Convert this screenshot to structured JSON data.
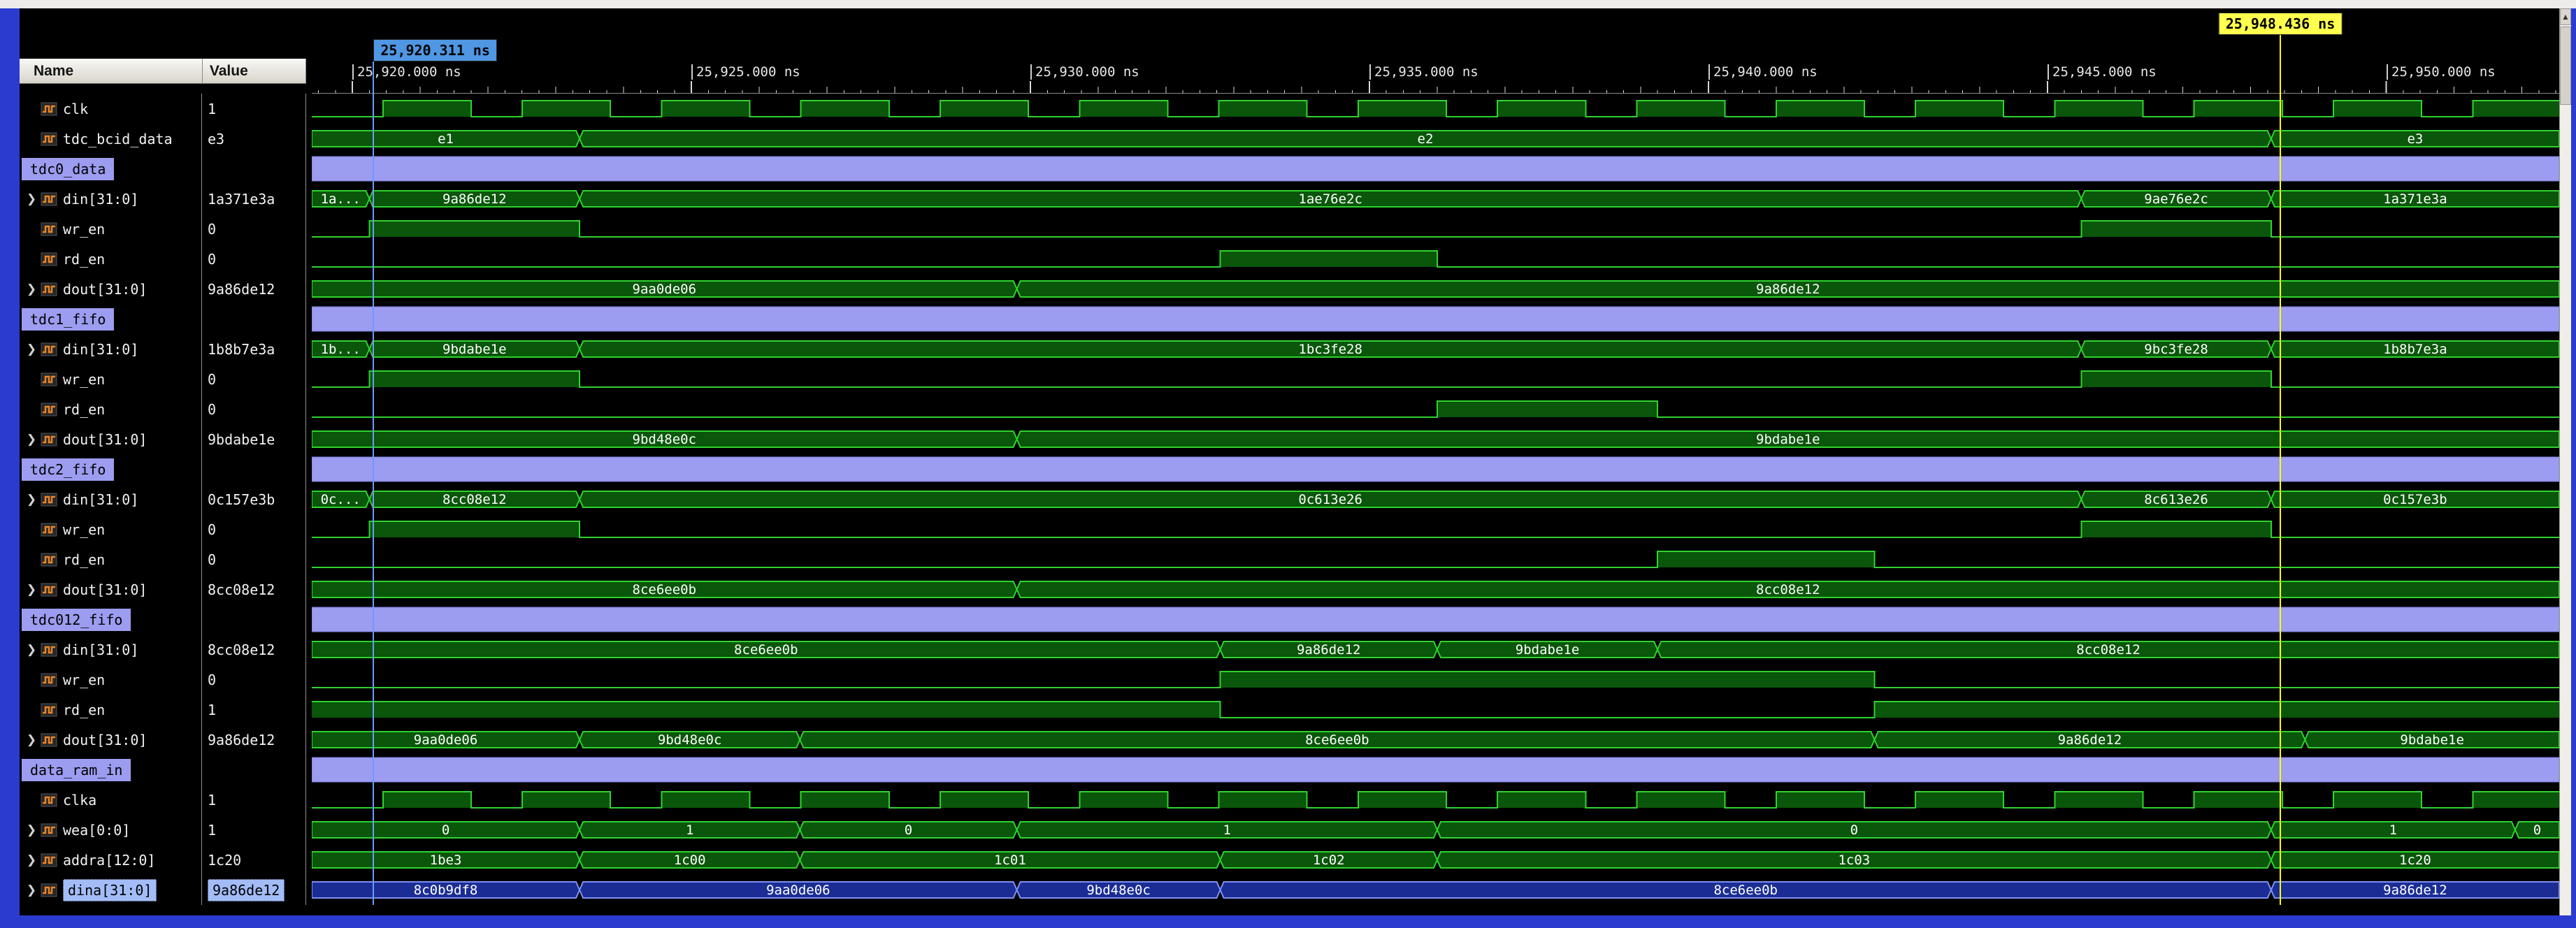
{
  "header": {
    "name_label": "Name",
    "value_label": "Value"
  },
  "scrollbar": {
    "up_arrow": "▲"
  },
  "cursors": {
    "primary": {
      "time_ns": 25920.311,
      "label": "25,920.311 ns"
    },
    "secondary": {
      "time_ns": 25948.436,
      "label": "25,948.436 ns"
    }
  },
  "timeline": {
    "start_ns": 25919.4,
    "end_ns": 25952.55,
    "major_step_ns": 5,
    "medium_step_ns": 1,
    "minor_step_ns": 0.25,
    "ticks": [
      {
        "t": 25920,
        "label": "25,920.000 ns"
      },
      {
        "t": 25925,
        "label": "25,925.000 ns"
      },
      {
        "t": 25930,
        "label": "25,930.000 ns"
      },
      {
        "t": 25935,
        "label": "25,935.000 ns"
      },
      {
        "t": 25940,
        "label": "25,940.000 ns"
      },
      {
        "t": 25945,
        "label": "25,945.000 ns"
      },
      {
        "t": 25950,
        "label": "25,950.000 ns"
      }
    ]
  },
  "colors": {
    "wave_stroke": "#2fd32f",
    "wave_fill": "#0a560a",
    "divider": "#9c9cf0",
    "divider_stroke": "#7d7dd8",
    "selected_wave_fill": "#1b2d95",
    "selected_wave_stroke": "#7e90f2",
    "selected_text": "#eef2ff",
    "cursor1_line": "#6b9bff",
    "cursor1_chip_bg": "#4f97e3",
    "cursor2_line": "#ffff00",
    "cursor2_chip_bg": "#ffff4d"
  },
  "signals": [
    {
      "name": "clk",
      "value": "1",
      "kind": "clock",
      "expandable": false,
      "clock": {
        "first_rise": 25920.45,
        "period": 2.055,
        "high": 1.3
      }
    },
    {
      "name": "tdc_bcid_data",
      "value": "e3",
      "kind": "bus",
      "expandable": false,
      "segs": [
        [
          25919.4,
          25923.35,
          "e1"
        ],
        [
          25923.35,
          25948.3,
          "e2"
        ],
        [
          25948.3,
          25952.55,
          "e3"
        ]
      ]
    },
    {
      "name": "tdc0_data",
      "kind": "divider"
    },
    {
      "name": "din[31:0]",
      "value": "1a371e3a",
      "kind": "bus",
      "expandable": true,
      "segs": [
        [
          25919.4,
          25920.25,
          "1a..."
        ],
        [
          25920.25,
          25923.35,
          "9a86de12"
        ],
        [
          25923.35,
          25945.5,
          "1ae76e2c"
        ],
        [
          25945.5,
          25948.3,
          "9ae76e2c"
        ],
        [
          25948.3,
          25952.55,
          "1a371e3a"
        ]
      ]
    },
    {
      "name": "wr_en",
      "value": "0",
      "kind": "bit",
      "init": 0,
      "edges": [
        25920.25,
        25923.35,
        25945.5,
        25948.3
      ]
    },
    {
      "name": "rd_en",
      "value": "0",
      "kind": "bit",
      "init": 0,
      "edges": [
        25932.8,
        25936.0
      ]
    },
    {
      "name": "dout[31:0]",
      "value": "9a86de12",
      "kind": "bus",
      "expandable": true,
      "segs": [
        [
          25919.4,
          25929.8,
          "9aa0de06"
        ],
        [
          25929.8,
          25952.55,
          "9a86de12"
        ]
      ]
    },
    {
      "name": "tdc1_fifo",
      "kind": "divider"
    },
    {
      "name": "din[31:0]",
      "value": "1b8b7e3a",
      "kind": "bus",
      "expandable": true,
      "segs": [
        [
          25919.4,
          25920.25,
          "1b..."
        ],
        [
          25920.25,
          25923.35,
          "9bdabe1e"
        ],
        [
          25923.35,
          25945.5,
          "1bc3fe28"
        ],
        [
          25945.5,
          25948.3,
          "9bc3fe28"
        ],
        [
          25948.3,
          25952.55,
          "1b8b7e3a"
        ]
      ]
    },
    {
      "name": "wr_en",
      "value": "0",
      "kind": "bit",
      "init": 0,
      "edges": [
        25920.25,
        25923.35,
        25945.5,
        25948.3
      ]
    },
    {
      "name": "rd_en",
      "value": "0",
      "kind": "bit",
      "init": 0,
      "edges": [
        25936.0,
        25939.25
      ]
    },
    {
      "name": "dout[31:0]",
      "value": "9bdabe1e",
      "kind": "bus",
      "expandable": true,
      "segs": [
        [
          25919.4,
          25929.8,
          "9bd48e0c"
        ],
        [
          25929.8,
          25952.55,
          "9bdabe1e"
        ]
      ]
    },
    {
      "name": "tdc2_fifo",
      "kind": "divider"
    },
    {
      "name": "din[31:0]",
      "value": "0c157e3b",
      "kind": "bus",
      "expandable": true,
      "segs": [
        [
          25919.4,
          25920.25,
          "0c..."
        ],
        [
          25920.25,
          25923.35,
          "8cc08e12"
        ],
        [
          25923.35,
          25945.5,
          "0c613e26"
        ],
        [
          25945.5,
          25948.3,
          "8c613e26"
        ],
        [
          25948.3,
          25952.55,
          "0c157e3b"
        ]
      ]
    },
    {
      "name": "wr_en",
      "value": "0",
      "kind": "bit",
      "init": 0,
      "edges": [
        25920.25,
        25923.35,
        25945.5,
        25948.3
      ]
    },
    {
      "name": "rd_en",
      "value": "0",
      "kind": "bit",
      "init": 0,
      "edges": [
        25939.25,
        25942.45
      ]
    },
    {
      "name": "dout[31:0]",
      "value": "8cc08e12",
      "kind": "bus",
      "expandable": true,
      "segs": [
        [
          25919.4,
          25929.8,
          "8ce6ee0b"
        ],
        [
          25929.8,
          25952.55,
          "8cc08e12"
        ]
      ]
    },
    {
      "name": "tdc012_fifo",
      "kind": "divider"
    },
    {
      "name": "din[31:0]",
      "value": "8cc08e12",
      "kind": "bus",
      "expandable": true,
      "segs": [
        [
          25919.4,
          25932.8,
          "8ce6ee0b"
        ],
        [
          25932.8,
          25936.0,
          "9a86de12"
        ],
        [
          25936.0,
          25939.25,
          "9bdabe1e"
        ],
        [
          25939.25,
          25952.55,
          "8cc08e12"
        ]
      ]
    },
    {
      "name": "wr_en",
      "value": "0",
      "kind": "bit",
      "init": 0,
      "edges": [
        25932.8,
        25942.45
      ]
    },
    {
      "name": "rd_en",
      "value": "1",
      "kind": "bit",
      "init": 1,
      "edges": [
        25932.8,
        25942.45
      ]
    },
    {
      "name": "dout[31:0]",
      "value": "9a86de12",
      "kind": "bus",
      "expandable": true,
      "segs": [
        [
          25919.4,
          25923.35,
          "9aa0de06"
        ],
        [
          25923.35,
          25926.6,
          "9bd48e0c"
        ],
        [
          25926.6,
          25942.45,
          "8ce6ee0b"
        ],
        [
          25942.45,
          25948.8,
          "9a86de12"
        ],
        [
          25948.8,
          25952.55,
          "9bdabe1e"
        ]
      ]
    },
    {
      "name": "data_ram_in",
      "kind": "divider"
    },
    {
      "name": "clka",
      "value": "1",
      "kind": "clock",
      "expandable": false,
      "clock": {
        "first_rise": 25920.45,
        "period": 2.055,
        "high": 1.3
      }
    },
    {
      "name": "wea[0:0]",
      "value": "1",
      "kind": "bus",
      "expandable": true,
      "segs": [
        [
          25919.4,
          25923.35,
          "0"
        ],
        [
          25923.35,
          25926.6,
          "1"
        ],
        [
          25926.6,
          25929.8,
          "0"
        ],
        [
          25929.8,
          25936.0,
          "1"
        ],
        [
          25936.0,
          25948.3,
          "0"
        ],
        [
          25948.3,
          25951.9,
          "1"
        ],
        [
          25951.9,
          25952.55,
          "0"
        ]
      ]
    },
    {
      "name": "addra[12:0]",
      "value": "1c20",
      "kind": "bus",
      "expandable": true,
      "segs": [
        [
          25919.4,
          25923.35,
          "1be3"
        ],
        [
          25923.35,
          25926.6,
          "1c00"
        ],
        [
          25926.6,
          25932.8,
          "1c01"
        ],
        [
          25932.8,
          25936.0,
          "1c02"
        ],
        [
          25936.0,
          25948.3,
          "1c03"
        ],
        [
          25948.3,
          25952.55,
          "1c20"
        ]
      ]
    },
    {
      "name": "dina[31:0]",
      "value": "9a86de12",
      "kind": "bus",
      "expandable": true,
      "selected": true,
      "segs": [
        [
          25919.4,
          25923.35,
          "8c0b9df8"
        ],
        [
          25923.35,
          25929.8,
          "9aa0de06"
        ],
        [
          25929.8,
          25932.8,
          "9bd48e0c"
        ],
        [
          25932.8,
          25948.3,
          "8ce6ee0b"
        ],
        [
          25948.3,
          25952.55,
          "9a86de12"
        ]
      ]
    }
  ]
}
